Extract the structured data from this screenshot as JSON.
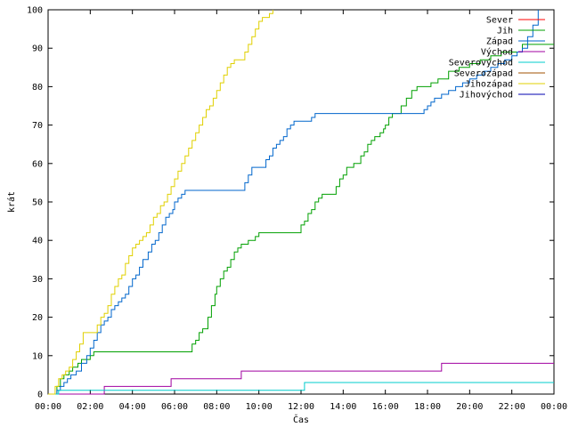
{
  "chart_data": {
    "type": "line",
    "title": "",
    "xlabel": "Čas",
    "ylabel": "krát",
    "xlim": [
      "00:00",
      "24:00"
    ],
    "ylim": [
      0,
      100
    ],
    "x_ticks": [
      "00:00",
      "02:00",
      "04:00",
      "06:00",
      "08:00",
      "10:00",
      "12:00",
      "14:00",
      "16:00",
      "18:00",
      "20:00",
      "22:00",
      "00:00"
    ],
    "y_ticks": [
      "0",
      "10",
      "20",
      "30",
      "40",
      "50",
      "60",
      "70",
      "80",
      "90",
      "100"
    ],
    "legend_position": "top-right",
    "series": [
      {
        "name": "Sever",
        "color": "#ff0000",
        "points": []
      },
      {
        "name": "Jih",
        "color": "#00a000",
        "points": [
          [
            "00:10",
            0
          ],
          [
            "00:25",
            2
          ],
          [
            "00:35",
            4
          ],
          [
            "00:45",
            5
          ],
          [
            "01:00",
            6
          ],
          [
            "01:10",
            7
          ],
          [
            "01:25",
            8
          ],
          [
            "01:35",
            9
          ],
          [
            "02:00",
            10
          ],
          [
            "02:10",
            11
          ],
          [
            "06:40",
            11
          ],
          [
            "06:50",
            13
          ],
          [
            "07:00",
            14
          ],
          [
            "07:10",
            16
          ],
          [
            "07:20",
            17
          ],
          [
            "07:35",
            20
          ],
          [
            "07:45",
            23
          ],
          [
            "07:55",
            26
          ],
          [
            "08:00",
            28
          ],
          [
            "08:10",
            30
          ],
          [
            "08:20",
            32
          ],
          [
            "08:30",
            33
          ],
          [
            "08:40",
            35
          ],
          [
            "08:50",
            37
          ],
          [
            "09:00",
            38
          ],
          [
            "09:10",
            39
          ],
          [
            "09:30",
            40
          ],
          [
            "09:50",
            41
          ],
          [
            "10:00",
            42
          ],
          [
            "10:40",
            42
          ],
          [
            "11:00",
            42
          ],
          [
            "11:40",
            42
          ],
          [
            "12:00",
            44
          ],
          [
            "12:10",
            45
          ],
          [
            "12:20",
            47
          ],
          [
            "12:30",
            48
          ],
          [
            "12:40",
            50
          ],
          [
            "12:50",
            51
          ],
          [
            "13:00",
            52
          ],
          [
            "13:30",
            52
          ],
          [
            "13:40",
            54
          ],
          [
            "13:50",
            56
          ],
          [
            "14:00",
            57
          ],
          [
            "14:10",
            59
          ],
          [
            "14:30",
            60
          ],
          [
            "14:50",
            62
          ],
          [
            "15:00",
            63
          ],
          [
            "15:10",
            65
          ],
          [
            "15:20",
            66
          ],
          [
            "15:30",
            67
          ],
          [
            "15:45",
            68
          ],
          [
            "15:55",
            69
          ],
          [
            "16:00",
            70
          ],
          [
            "16:10",
            72
          ],
          [
            "16:20",
            73
          ],
          [
            "16:30",
            73
          ],
          [
            "16:45",
            75
          ],
          [
            "17:00",
            77
          ],
          [
            "17:15",
            79
          ],
          [
            "17:30",
            80
          ],
          [
            "18:00",
            80
          ],
          [
            "18:10",
            81
          ],
          [
            "18:30",
            82
          ],
          [
            "19:00",
            84
          ],
          [
            "19:30",
            85
          ],
          [
            "20:00",
            86
          ],
          [
            "20:30",
            87
          ],
          [
            "21:00",
            88
          ],
          [
            "21:30",
            89
          ],
          [
            "22:00",
            89
          ],
          [
            "22:30",
            91
          ],
          [
            "23:30",
            91
          ],
          [
            "24:00",
            91
          ]
        ]
      },
      {
        "name": "Západ",
        "color": "#0066cc",
        "points": [
          [
            "00:15",
            0
          ],
          [
            "00:25",
            1
          ],
          [
            "00:35",
            2
          ],
          [
            "00:45",
            3
          ],
          [
            "00:55",
            4
          ],
          [
            "01:05",
            5
          ],
          [
            "01:20",
            6
          ],
          [
            "01:35",
            8
          ],
          [
            "01:50",
            10
          ],
          [
            "02:00",
            12
          ],
          [
            "02:10",
            14
          ],
          [
            "02:20",
            16
          ],
          [
            "02:30",
            18
          ],
          [
            "02:40",
            19
          ],
          [
            "02:50",
            20
          ],
          [
            "03:00",
            22
          ],
          [
            "03:10",
            23
          ],
          [
            "03:20",
            24
          ],
          [
            "03:30",
            25
          ],
          [
            "03:40",
            26
          ],
          [
            "03:50",
            28
          ],
          [
            "04:00",
            30
          ],
          [
            "04:10",
            31
          ],
          [
            "04:20",
            33
          ],
          [
            "04:30",
            35
          ],
          [
            "04:45",
            37
          ],
          [
            "04:55",
            39
          ],
          [
            "05:05",
            40
          ],
          [
            "05:15",
            42
          ],
          [
            "05:25",
            44
          ],
          [
            "05:35",
            46
          ],
          [
            "05:45",
            47
          ],
          [
            "05:55",
            48
          ],
          [
            "06:00",
            50
          ],
          [
            "06:10",
            51
          ],
          [
            "06:20",
            52
          ],
          [
            "06:30",
            53
          ],
          [
            "06:40",
            53
          ],
          [
            "09:10",
            53
          ],
          [
            "09:20",
            55
          ],
          [
            "09:30",
            57
          ],
          [
            "09:40",
            59
          ],
          [
            "10:10",
            59
          ],
          [
            "10:20",
            61
          ],
          [
            "10:30",
            62
          ],
          [
            "10:40",
            64
          ],
          [
            "10:50",
            65
          ],
          [
            "11:00",
            66
          ],
          [
            "11:10",
            67
          ],
          [
            "11:20",
            69
          ],
          [
            "11:30",
            70
          ],
          [
            "11:40",
            71
          ],
          [
            "12:20",
            71
          ],
          [
            "12:30",
            72
          ],
          [
            "12:40",
            73
          ],
          [
            "17:40",
            73
          ],
          [
            "17:50",
            74
          ],
          [
            "18:00",
            75
          ],
          [
            "18:10",
            76
          ],
          [
            "18:20",
            77
          ],
          [
            "18:40",
            78
          ],
          [
            "19:00",
            79
          ],
          [
            "19:20",
            80
          ],
          [
            "19:40",
            81
          ],
          [
            "20:00",
            82
          ],
          [
            "20:20",
            83
          ],
          [
            "20:40",
            84
          ],
          [
            "21:00",
            85
          ],
          [
            "21:20",
            86
          ],
          [
            "21:40",
            87
          ],
          [
            "22:00",
            88
          ],
          [
            "22:15",
            89
          ],
          [
            "22:30",
            90
          ],
          [
            "22:45",
            93
          ],
          [
            "23:00",
            96
          ],
          [
            "23:15",
            100
          ]
        ]
      },
      {
        "name": "Východ",
        "color": "#a000a0",
        "points": [
          [
            "00:00",
            0
          ],
          [
            "02:40",
            0
          ],
          [
            "02:40",
            2
          ],
          [
            "05:50",
            2
          ],
          [
            "05:50",
            4
          ],
          [
            "09:10",
            4
          ],
          [
            "09:10",
            6
          ],
          [
            "18:40",
            6
          ],
          [
            "18:40",
            8
          ],
          [
            "24:00",
            8
          ]
        ]
      },
      {
        "name": "Severovýchod",
        "color": "#00cccc",
        "points": [
          [
            "00:00",
            0
          ],
          [
            "00:30",
            0
          ],
          [
            "00:30",
            1
          ],
          [
            "12:10",
            1
          ],
          [
            "12:10",
            3
          ],
          [
            "24:00",
            3
          ]
        ]
      },
      {
        "name": "Severozápad",
        "color": "#a05000",
        "points": []
      },
      {
        "name": "Jihozápad",
        "color": "#e0d000",
        "points": [
          [
            "00:00",
            0
          ],
          [
            "00:20",
            2
          ],
          [
            "00:30",
            4
          ],
          [
            "00:40",
            5
          ],
          [
            "00:50",
            6
          ],
          [
            "01:00",
            7
          ],
          [
            "01:10",
            9
          ],
          [
            "01:20",
            11
          ],
          [
            "01:30",
            13
          ],
          [
            "01:40",
            16
          ],
          [
            "02:10",
            16
          ],
          [
            "02:20",
            18
          ],
          [
            "02:30",
            20
          ],
          [
            "02:40",
            21
          ],
          [
            "02:50",
            23
          ],
          [
            "03:00",
            26
          ],
          [
            "03:10",
            28
          ],
          [
            "03:20",
            30
          ],
          [
            "03:30",
            31
          ],
          [
            "03:40",
            34
          ],
          [
            "03:50",
            36
          ],
          [
            "04:00",
            38
          ],
          [
            "04:10",
            39
          ],
          [
            "04:20",
            40
          ],
          [
            "04:30",
            41
          ],
          [
            "04:40",
            42
          ],
          [
            "04:50",
            44
          ],
          [
            "05:00",
            46
          ],
          [
            "05:10",
            47
          ],
          [
            "05:20",
            49
          ],
          [
            "05:30",
            50
          ],
          [
            "05:40",
            52
          ],
          [
            "05:50",
            54
          ],
          [
            "06:00",
            56
          ],
          [
            "06:10",
            58
          ],
          [
            "06:20",
            60
          ],
          [
            "06:30",
            62
          ],
          [
            "06:40",
            64
          ],
          [
            "06:50",
            66
          ],
          [
            "07:00",
            68
          ],
          [
            "07:10",
            70
          ],
          [
            "07:20",
            72
          ],
          [
            "07:30",
            74
          ],
          [
            "07:40",
            75
          ],
          [
            "07:50",
            77
          ],
          [
            "08:00",
            79
          ],
          [
            "08:10",
            81
          ],
          [
            "08:20",
            83
          ],
          [
            "08:30",
            85
          ],
          [
            "08:40",
            86
          ],
          [
            "08:50",
            87
          ],
          [
            "09:10",
            87
          ],
          [
            "09:20",
            89
          ],
          [
            "09:30",
            91
          ],
          [
            "09:40",
            93
          ],
          [
            "09:50",
            95
          ],
          [
            "10:00",
            97
          ],
          [
            "10:10",
            98
          ],
          [
            "10:30",
            99
          ],
          [
            "10:40",
            100
          ]
        ]
      },
      {
        "name": "Jihovýchod",
        "color": "#0000b0",
        "points": []
      }
    ]
  }
}
